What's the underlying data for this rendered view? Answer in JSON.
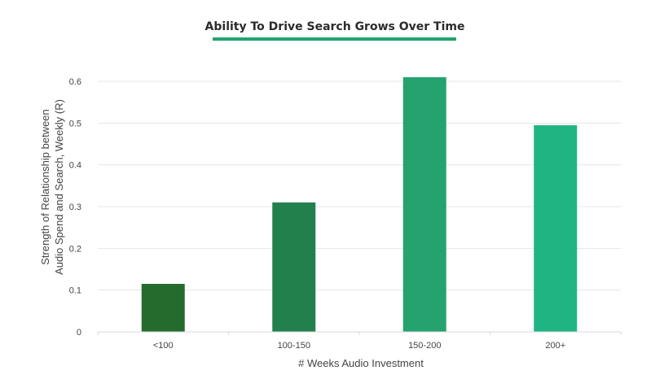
{
  "chart_data": {
    "type": "bar",
    "title": "Ability To Drive Search Grows Over Time",
    "xlabel": "# Weeks Audio Investment",
    "ylabel_lines": [
      "Strength of Relationship between",
      "Audio Spend and Search, Weekly (R)"
    ],
    "categories": [
      "<100",
      "100-150",
      "150-200",
      "200+"
    ],
    "values": [
      0.115,
      0.31,
      0.61,
      0.495
    ],
    "ylim": [
      0,
      0.6
    ],
    "yticks": [
      "0",
      "0.1",
      "0.2",
      "0.3",
      "0.4",
      "0.5",
      "0.6"
    ],
    "bar_colors": [
      "#256b2e",
      "#22804d",
      "#24a36f",
      "#21b483"
    ],
    "accent_color": "#24a36f",
    "grid": true,
    "legend": "none"
  }
}
